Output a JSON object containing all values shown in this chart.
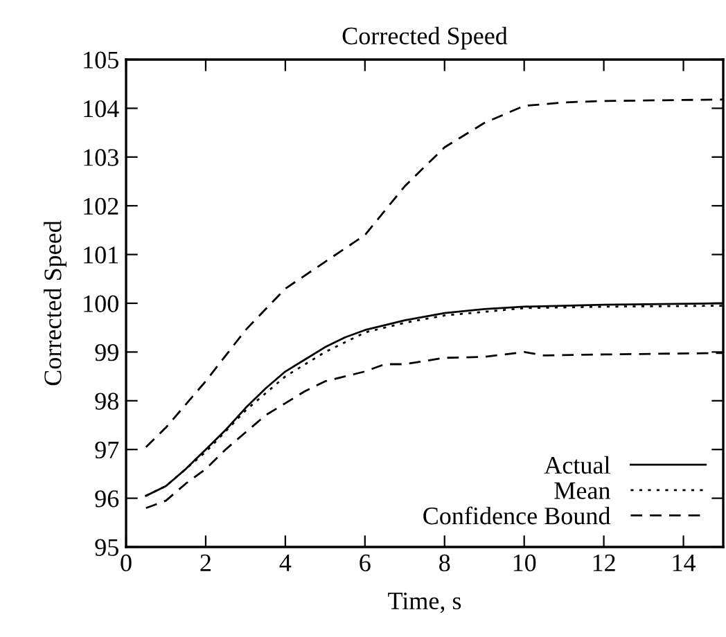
{
  "chart_data": {
    "type": "line",
    "title": "Corrected Speed",
    "xlabel": "Time, s",
    "ylabel": "Corrected Speed",
    "xlim": [
      0,
      15
    ],
    "xticks": [
      0,
      2,
      4,
      6,
      8,
      10,
      12,
      14
    ],
    "ylim": [
      95,
      105
    ],
    "yticks": [
      95,
      96,
      97,
      98,
      99,
      100,
      101,
      102,
      103,
      104,
      105
    ],
    "grid": false,
    "legend": "bottom right",
    "marker": "none",
    "series": [
      {
        "name": "Actual",
        "color": "#000000",
        "line_style": "solid",
        "x": [
          0.5,
          1,
          1.5,
          2,
          2.5,
          3,
          3.5,
          4,
          4.5,
          5,
          5.5,
          6,
          7,
          8,
          9,
          10,
          12,
          15
        ],
        "values": [
          96.05,
          96.25,
          96.6,
          97.0,
          97.4,
          97.85,
          98.25,
          98.6,
          98.85,
          99.1,
          99.3,
          99.45,
          99.65,
          99.8,
          99.88,
          99.93,
          99.97,
          100.0
        ]
      },
      {
        "name": "Mean",
        "color": "#000000",
        "line_style": "dotted",
        "x": [
          0.5,
          1,
          2,
          3,
          4,
          5,
          6,
          7,
          8,
          10,
          12,
          15
        ],
        "values": [
          96.05,
          96.25,
          96.95,
          97.8,
          98.5,
          99.0,
          99.4,
          99.6,
          99.75,
          99.9,
          99.93,
          99.95
        ]
      },
      {
        "name": "Confidence Bound",
        "color": "#000000",
        "line_style": "dashed",
        "x": [
          0.5,
          1,
          2,
          3,
          4,
          5,
          6,
          7,
          8,
          9,
          10,
          11,
          12,
          15
        ],
        "values": [
          97.05,
          97.45,
          98.4,
          99.45,
          100.3,
          100.85,
          101.4,
          102.4,
          103.2,
          103.7,
          104.05,
          104.12,
          104.15,
          104.18
        ]
      },
      {
        "color": "#000000",
        "line_style": "dashed",
        "x": [
          0.5,
          1,
          1.5,
          2,
          2.5,
          3,
          3.5,
          4,
          4.5,
          5,
          6,
          6.5,
          7,
          8,
          9,
          10,
          10.5,
          12,
          15
        ],
        "values": [
          95.8,
          95.95,
          96.3,
          96.6,
          97.0,
          97.35,
          97.7,
          97.95,
          98.2,
          98.4,
          98.6,
          98.75,
          98.75,
          98.88,
          98.9,
          99.0,
          98.93,
          98.95,
          98.98
        ]
      }
    ]
  }
}
